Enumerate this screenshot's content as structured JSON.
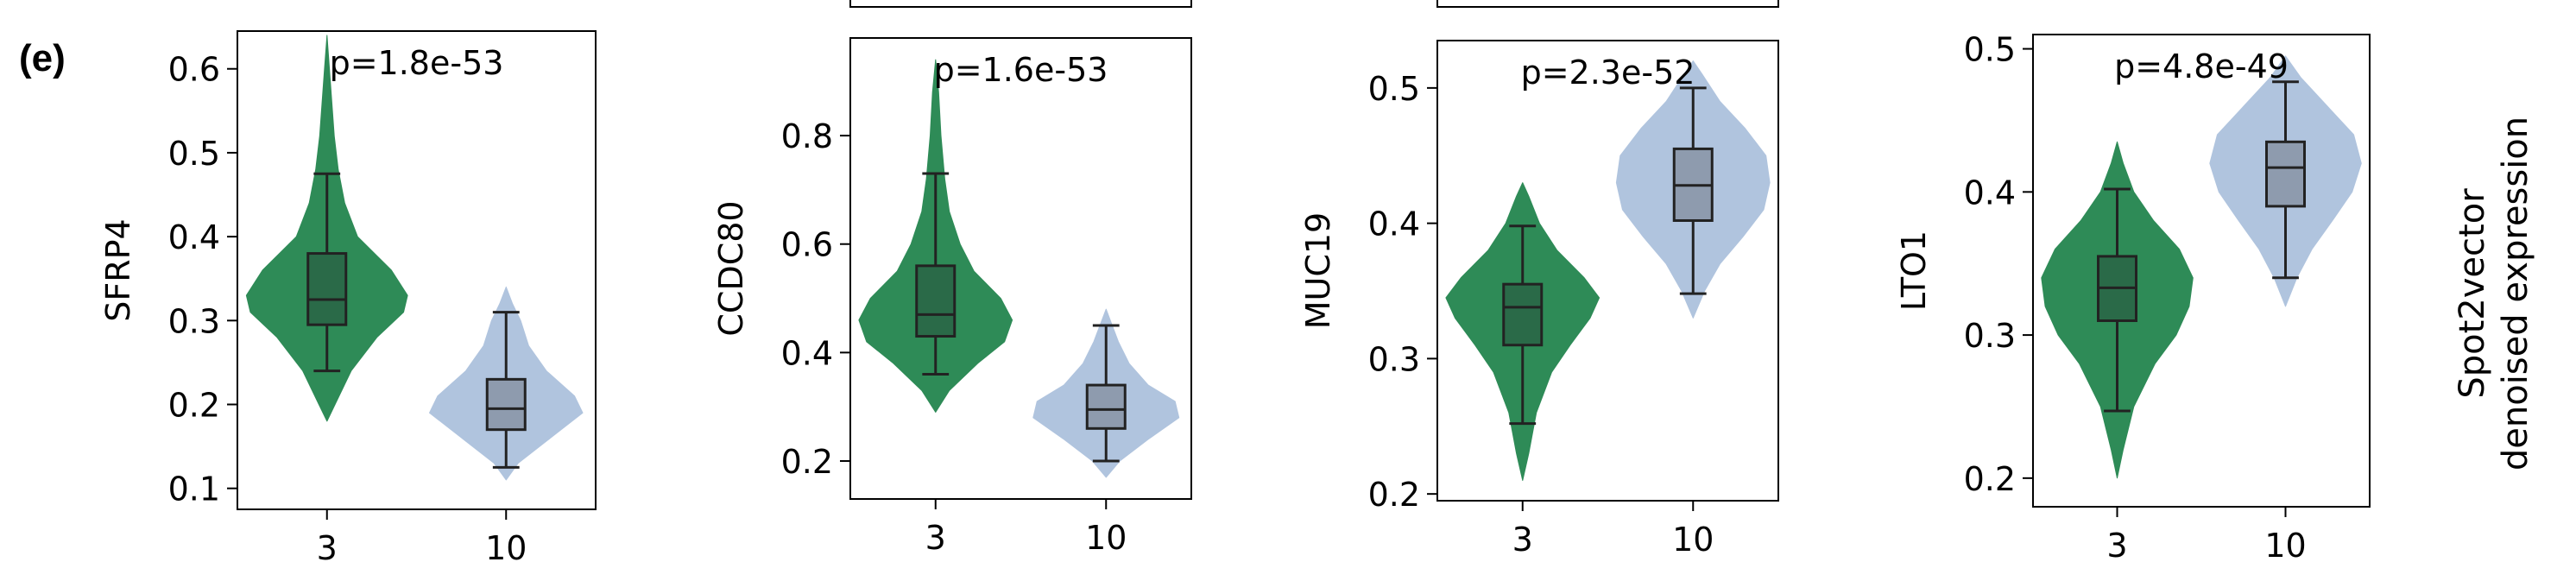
{
  "panel_label": "(e)",
  "side_label": [
    "Spot2vector",
    "denoised expression"
  ],
  "colors": {
    "group_a_violin": "#2e8b57",
    "group_a_box": "#2a6a48",
    "group_b_violin": "#b0c4de",
    "group_b_box": "#8e9bae",
    "frame": "#000000",
    "whisker": "#222222"
  },
  "chart_data": [
    {
      "type": "violin",
      "ylabel": "SFRP4",
      "annotation": "p=1.8e-53",
      "categories": [
        "3",
        "10"
      ],
      "ylim": [
        0.075,
        0.645
      ],
      "yticks": [
        0.1,
        0.2,
        0.3,
        0.4,
        0.5,
        0.6
      ],
      "tick_decimals": 1,
      "series": [
        {
          "category": "3",
          "violin_range": [
            0.18,
            0.64
          ],
          "whisker_low": 0.24,
          "q1": 0.295,
          "median": 0.325,
          "q3": 0.38,
          "whisker_high": 0.475,
          "density": [
            [
              0.18,
              0.0
            ],
            [
              0.2,
              0.1
            ],
            [
              0.24,
              0.3
            ],
            [
              0.28,
              0.62
            ],
            [
              0.31,
              0.95
            ],
            [
              0.33,
              1.0
            ],
            [
              0.36,
              0.8
            ],
            [
              0.4,
              0.38
            ],
            [
              0.44,
              0.22
            ],
            [
              0.48,
              0.14
            ],
            [
              0.52,
              0.09
            ],
            [
              0.56,
              0.06
            ],
            [
              0.6,
              0.03
            ],
            [
              0.64,
              0.0
            ]
          ]
        },
        {
          "category": "10",
          "violin_range": [
            0.11,
            0.34
          ],
          "whisker_low": 0.125,
          "q1": 0.17,
          "median": 0.195,
          "q3": 0.23,
          "whisker_high": 0.31,
          "density": [
            [
              0.11,
              0.0
            ],
            [
              0.13,
              0.15
            ],
            [
              0.16,
              0.55
            ],
            [
              0.19,
              0.95
            ],
            [
              0.21,
              0.85
            ],
            [
              0.24,
              0.5
            ],
            [
              0.27,
              0.28
            ],
            [
              0.3,
              0.18
            ],
            [
              0.32,
              0.08
            ],
            [
              0.34,
              0.0
            ]
          ]
        }
      ]
    },
    {
      "type": "violin",
      "ylabel": "CCDC80",
      "annotation": "p=1.6e-53",
      "categories": [
        "3",
        "10"
      ],
      "ylim": [
        0.13,
        0.98
      ],
      "yticks": [
        0.2,
        0.4,
        0.6,
        0.8
      ],
      "tick_decimals": 1,
      "series": [
        {
          "category": "3",
          "violin_range": [
            0.29,
            0.94
          ],
          "whisker_low": 0.36,
          "q1": 0.43,
          "median": 0.47,
          "q3": 0.56,
          "whisker_high": 0.73,
          "density": [
            [
              0.29,
              0.0
            ],
            [
              0.33,
              0.18
            ],
            [
              0.38,
              0.55
            ],
            [
              0.42,
              0.9
            ],
            [
              0.46,
              1.0
            ],
            [
              0.5,
              0.85
            ],
            [
              0.55,
              0.5
            ],
            [
              0.6,
              0.32
            ],
            [
              0.66,
              0.18
            ],
            [
              0.72,
              0.12
            ],
            [
              0.8,
              0.07
            ],
            [
              0.88,
              0.04
            ],
            [
              0.94,
              0.0
            ]
          ]
        },
        {
          "category": "10",
          "violin_range": [
            0.17,
            0.48
          ],
          "whisker_low": 0.2,
          "q1": 0.26,
          "median": 0.295,
          "q3": 0.34,
          "whisker_high": 0.45,
          "density": [
            [
              0.17,
              0.0
            ],
            [
              0.2,
              0.18
            ],
            [
              0.24,
              0.55
            ],
            [
              0.28,
              0.95
            ],
            [
              0.31,
              0.9
            ],
            [
              0.34,
              0.55
            ],
            [
              0.38,
              0.3
            ],
            [
              0.42,
              0.16
            ],
            [
              0.45,
              0.08
            ],
            [
              0.48,
              0.0
            ]
          ]
        }
      ]
    },
    {
      "type": "violin",
      "ylabel": "MUC19",
      "annotation": "p=2.3e-52",
      "categories": [
        "3",
        "10"
      ],
      "ylim": [
        0.195,
        0.535
      ],
      "yticks": [
        0.2,
        0.3,
        0.4,
        0.5
      ],
      "tick_decimals": 1,
      "series": [
        {
          "category": "3",
          "violin_range": [
            0.21,
            0.43
          ],
          "whisker_low": 0.252,
          "q1": 0.31,
          "median": 0.338,
          "q3": 0.355,
          "whisker_high": 0.398,
          "density": [
            [
              0.21,
              0.0
            ],
            [
              0.23,
              0.08
            ],
            [
              0.26,
              0.18
            ],
            [
              0.29,
              0.38
            ],
            [
              0.31,
              0.62
            ],
            [
              0.33,
              0.88
            ],
            [
              0.345,
              1.0
            ],
            [
              0.36,
              0.8
            ],
            [
              0.38,
              0.45
            ],
            [
              0.4,
              0.22
            ],
            [
              0.42,
              0.08
            ],
            [
              0.43,
              0.0
            ]
          ]
        },
        {
          "category": "10",
          "violin_range": [
            0.33,
            0.52
          ],
          "whisker_low": 0.348,
          "q1": 0.402,
          "median": 0.428,
          "q3": 0.455,
          "whisker_high": 0.5,
          "density": [
            [
              0.33,
              0.0
            ],
            [
              0.35,
              0.15
            ],
            [
              0.37,
              0.35
            ],
            [
              0.39,
              0.65
            ],
            [
              0.41,
              0.92
            ],
            [
              0.43,
              1.0
            ],
            [
              0.45,
              0.95
            ],
            [
              0.47,
              0.68
            ],
            [
              0.49,
              0.35
            ],
            [
              0.51,
              0.12
            ],
            [
              0.52,
              0.0
            ]
          ]
        }
      ]
    },
    {
      "type": "violin",
      "ylabel": "LTO1",
      "annotation": "p=4.8e-49",
      "categories": [
        "3",
        "10"
      ],
      "ylim": [
        0.18,
        0.51
      ],
      "yticks": [
        0.2,
        0.3,
        0.4,
        0.5
      ],
      "tick_decimals": 1,
      "series": [
        {
          "category": "3",
          "violin_range": [
            0.2,
            0.435
          ],
          "whisker_low": 0.247,
          "q1": 0.31,
          "median": 0.333,
          "q3": 0.355,
          "whisker_high": 0.402,
          "density": [
            [
              0.2,
              0.0
            ],
            [
              0.22,
              0.08
            ],
            [
              0.25,
              0.22
            ],
            [
              0.28,
              0.5
            ],
            [
              0.3,
              0.78
            ],
            [
              0.32,
              0.95
            ],
            [
              0.34,
              1.0
            ],
            [
              0.36,
              0.82
            ],
            [
              0.38,
              0.48
            ],
            [
              0.4,
              0.22
            ],
            [
              0.42,
              0.08
            ],
            [
              0.435,
              0.0
            ]
          ]
        },
        {
          "category": "10",
          "violin_range": [
            0.32,
            0.495
          ],
          "whisker_low": 0.34,
          "q1": 0.39,
          "median": 0.417,
          "q3": 0.435,
          "whisker_high": 0.477,
          "density": [
            [
              0.32,
              0.0
            ],
            [
              0.34,
              0.15
            ],
            [
              0.36,
              0.35
            ],
            [
              0.38,
              0.62
            ],
            [
              0.4,
              0.88
            ],
            [
              0.42,
              1.0
            ],
            [
              0.44,
              0.9
            ],
            [
              0.46,
              0.55
            ],
            [
              0.48,
              0.2
            ],
            [
              0.495,
              0.0
            ]
          ]
        }
      ]
    }
  ]
}
